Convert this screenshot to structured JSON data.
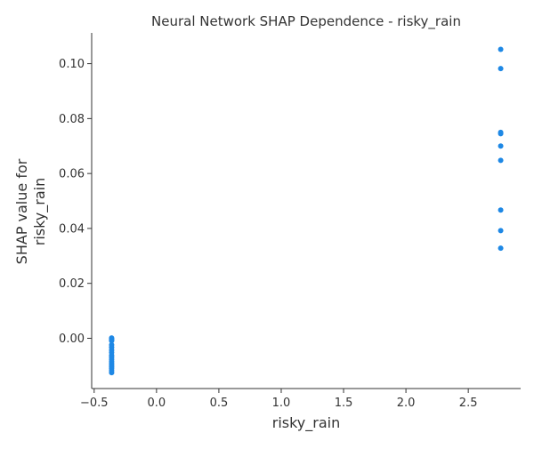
{
  "chart_data": {
    "type": "scatter",
    "title": "Neural Network SHAP Dependence - risky_rain",
    "xlabel": "risky_rain",
    "ylabel_lines": [
      "SHAP value for",
      "risky_rain"
    ],
    "xlim": [
      -0.52,
      2.92
    ],
    "ylim": [
      -0.0183,
      0.1112
    ],
    "xticks": [
      -0.5,
      0.0,
      0.5,
      1.0,
      1.5,
      2.0,
      2.5
    ],
    "xtick_labels": [
      "−0.5",
      "0.0",
      "0.5",
      "1.0",
      "1.5",
      "2.0",
      "2.5"
    ],
    "yticks": [
      0.0,
      0.02,
      0.04,
      0.06,
      0.08,
      0.1
    ],
    "ytick_labels": [
      "0.00",
      "0.02",
      "0.04",
      "0.06",
      "0.08",
      "0.10"
    ],
    "grid": false,
    "color": "#1e88e5",
    "points": [
      {
        "x": 2.76,
        "y": 0.1052
      },
      {
        "x": 2.76,
        "y": 0.0982
      },
      {
        "x": 2.76,
        "y": 0.075
      },
      {
        "x": 2.76,
        "y": 0.0745
      },
      {
        "x": 2.76,
        "y": 0.07
      },
      {
        "x": 2.76,
        "y": 0.0648
      },
      {
        "x": 2.76,
        "y": 0.0467
      },
      {
        "x": 2.76,
        "y": 0.0392
      },
      {
        "x": 2.76,
        "y": 0.0328
      },
      {
        "x": -0.36,
        "y": 0.0001
      },
      {
        "x": -0.36,
        "y": -0.0003
      },
      {
        "x": -0.36,
        "y": -0.0006
      },
      {
        "x": -0.36,
        "y": -0.0009
      },
      {
        "x": -0.36,
        "y": -0.0024
      },
      {
        "x": -0.36,
        "y": -0.0033
      },
      {
        "x": -0.36,
        "y": -0.0043
      },
      {
        "x": -0.36,
        "y": -0.0052
      },
      {
        "x": -0.36,
        "y": -0.0062
      },
      {
        "x": -0.36,
        "y": -0.0069
      },
      {
        "x": -0.36,
        "y": -0.0077
      },
      {
        "x": -0.36,
        "y": -0.0085
      },
      {
        "x": -0.36,
        "y": -0.0092
      },
      {
        "x": -0.36,
        "y": -0.0098
      },
      {
        "x": -0.36,
        "y": -0.0104
      },
      {
        "x": -0.36,
        "y": -0.011
      },
      {
        "x": -0.36,
        "y": -0.0118
      },
      {
        "x": -0.36,
        "y": -0.0125
      }
    ]
  }
}
